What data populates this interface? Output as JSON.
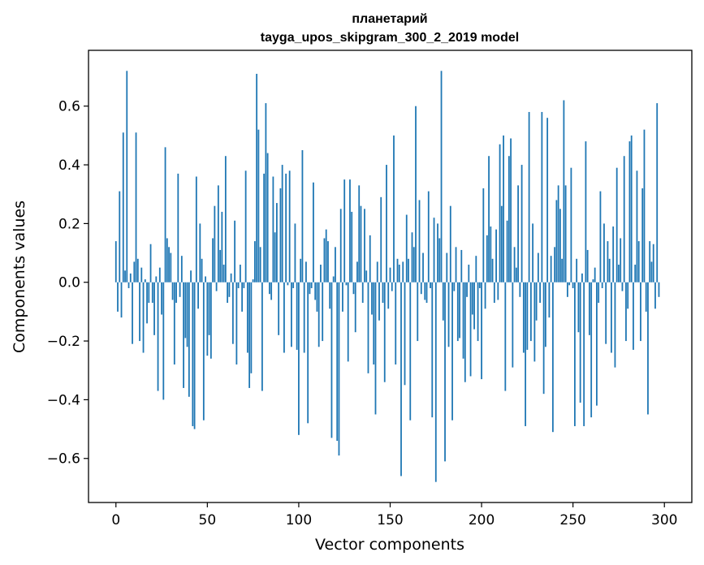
{
  "chart_data": {
    "type": "bar",
    "title_line1": "планетарий",
    "title_line2": "tayga_upos_skipgram_300_2_2019 model",
    "xlabel": "Vector components",
    "ylabel": "Components values",
    "xlim": [
      -15,
      315
    ],
    "ylim": [
      -0.75,
      0.79
    ],
    "xticks": [
      0,
      50,
      100,
      150,
      200,
      250,
      300
    ],
    "xtick_labels": [
      "0",
      "50",
      "100",
      "150",
      "200",
      "250",
      "300"
    ],
    "yticks": [
      -0.6,
      -0.4,
      -0.2,
      0.0,
      0.2,
      0.4,
      0.6
    ],
    "ytick_labels": [
      "−0.6",
      "−0.4",
      "−0.2",
      "0.0",
      "0.2",
      "0.4",
      "0.6"
    ],
    "grid": false,
    "bar_color": "#1f77b4",
    "values": [
      0.14,
      -0.1,
      0.31,
      -0.12,
      0.51,
      0.04,
      0.72,
      -0.02,
      0.03,
      -0.21,
      0.07,
      0.51,
      0.08,
      -0.2,
      0.05,
      -0.24,
      0.01,
      -0.14,
      -0.07,
      0.13,
      -0.07,
      -0.18,
      0.02,
      -0.37,
      0.05,
      -0.11,
      -0.4,
      0.46,
      0.15,
      0.12,
      0.1,
      -0.06,
      -0.28,
      -0.07,
      0.37,
      -0.05,
      0.09,
      -0.36,
      -0.19,
      -0.22,
      -0.39,
      0.04,
      -0.49,
      -0.5,
      0.36,
      -0.09,
      0.2,
      0.08,
      -0.47,
      0.02,
      -0.25,
      -0.18,
      -0.26,
      0.15,
      0.26,
      -0.03,
      0.33,
      0.11,
      0.24,
      0.06,
      0.43,
      -0.07,
      -0.05,
      0.03,
      -0.21,
      0.21,
      -0.28,
      -0.02,
      0.06,
      -0.1,
      -0.02,
      0.38,
      -0.24,
      -0.36,
      -0.31,
      0.01,
      0.14,
      0.71,
      0.52,
      0.12,
      -0.37,
      0.37,
      0.61,
      0.44,
      -0.04,
      -0.06,
      0.36,
      0.17,
      0.27,
      -0.18,
      0.32,
      0.4,
      -0.24,
      0.37,
      -0.01,
      0.38,
      -0.22,
      -0.02,
      0.2,
      -0.23,
      -0.52,
      0.08,
      0.45,
      -0.24,
      0.07,
      -0.48,
      -0.04,
      -0.02,
      0.34,
      -0.06,
      -0.1,
      -0.22,
      0.06,
      -0.2,
      0.15,
      0.18,
      0.14,
      -0.09,
      -0.53,
      0.02,
      0.12,
      -0.54,
      -0.59,
      0.25,
      -0.1,
      0.35,
      -0.01,
      -0.27,
      0.35,
      0.24,
      -0.04,
      -0.17,
      0.07,
      0.33,
      0.26,
      -0.07,
      0.25,
      0.04,
      -0.31,
      0.16,
      -0.11,
      -0.28,
      -0.45,
      0.07,
      -0.13,
      0.29,
      -0.07,
      -0.34,
      0.4,
      -0.09,
      0.05,
      -0.03,
      0.5,
      -0.28,
      0.08,
      0.06,
      -0.66,
      0.07,
      -0.35,
      0.23,
      0.08,
      -0.47,
      0.17,
      0.12,
      0.6,
      -0.2,
      0.28,
      -0.04,
      0.1,
      -0.06,
      -0.07,
      0.31,
      -0.02,
      -0.46,
      0.22,
      -0.68,
      0.2,
      0.15,
      0.72,
      -0.13,
      -0.61,
      0.1,
      -0.22,
      0.26,
      -0.47,
      -0.03,
      0.12,
      -0.2,
      -0.19,
      0.11,
      -0.26,
      -0.34,
      -0.05,
      0.06,
      -0.32,
      -0.11,
      -0.16,
      0.09,
      -0.2,
      -0.02,
      -0.33,
      0.32,
      -0.09,
      0.16,
      0.43,
      0.19,
      0.08,
      -0.07,
      0.18,
      -0.06,
      0.47,
      0.26,
      0.5,
      -0.37,
      0.21,
      0.43,
      0.49,
      -0.29,
      0.12,
      0.05,
      0.33,
      -0.05,
      0.4,
      -0.24,
      -0.49,
      -0.23,
      0.58,
      -0.2,
      0.2,
      -0.27,
      -0.13,
      0.1,
      -0.07,
      0.58,
      -0.38,
      -0.22,
      0.56,
      -0.12,
      0.09,
      -0.51,
      0.12,
      0.28,
      0.33,
      0.25,
      0.08,
      0.62,
      0.33,
      -0.05,
      -0.01,
      0.39,
      -0.02,
      -0.49,
      0.08,
      -0.17,
      -0.41,
      0.03,
      -0.49,
      0.48,
      0.11,
      -0.18,
      -0.46,
      0.01,
      0.05,
      -0.42,
      -0.07,
      0.31,
      -0.02,
      0.2,
      -0.21,
      0.14,
      0.08,
      -0.24,
      0.19,
      -0.29,
      0.39,
      0.06,
      0.15,
      -0.03,
      0.43,
      -0.2,
      -0.09,
      0.48,
      0.5,
      -0.23,
      0.06,
      0.38,
      0.14,
      -0.2,
      0.32,
      0.52,
      -0.1,
      -0.45,
      0.14,
      0.07,
      0.13,
      -0.09,
      0.61,
      -0.05
    ]
  }
}
